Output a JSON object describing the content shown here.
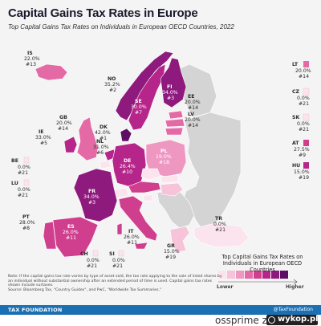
{
  "header": {
    "title": "Capital Gains Tax Rates in Europe",
    "subtitle": "Top Capital Gains Tax Rates on Individuals in European OECD Countries, 2022"
  },
  "colors": {
    "no_data": "#d4d4d4",
    "zero": "#fce4ee",
    "scale": [
      "#fce4ee",
      "#f6c3d9",
      "#ee98c1",
      "#e46aa6",
      "#cf3f8e",
      "#b5258a",
      "#8f1a7d",
      "#5e0f64"
    ]
  },
  "countries": [
    {
      "code": "IS",
      "rate": "22.0%",
      "rank": "#13",
      "value": 22.0
    },
    {
      "code": "NO",
      "rate": "35.2%",
      "rank": "#2",
      "value": 35.2
    },
    {
      "code": "SE",
      "rate": "30.0%",
      "rank": "#7",
      "value": 30.0
    },
    {
      "code": "FI",
      "rate": "34.0%",
      "rank": "#3",
      "value": 34.0
    },
    {
      "code": "EE",
      "rate": "20.0%",
      "rank": "#14",
      "value": 20.0
    },
    {
      "code": "LV",
      "rate": "20.0%",
      "rank": "#14",
      "value": 20.0
    },
    {
      "code": "GB",
      "rate": "20.0%",
      "rank": "#14",
      "value": 20.0
    },
    {
      "code": "IE",
      "rate": "33.0%",
      "rank": "#5",
      "value": 33.0
    },
    {
      "code": "DK",
      "rate": "42.0%",
      "rank": "#1",
      "value": 42.0
    },
    {
      "code": "NL",
      "rate": "31.0%",
      "rank": "#6",
      "value": 31.0
    },
    {
      "code": "DE",
      "rate": "26.4%",
      "rank": "#10",
      "value": 26.4
    },
    {
      "code": "PL",
      "rate": "19.0%",
      "rank": "#18",
      "value": 19.0
    },
    {
      "code": "FR",
      "rate": "34.0%",
      "rank": "#3",
      "value": 34.0
    },
    {
      "code": "ES",
      "rate": "26.0%",
      "rank": "#11",
      "value": 26.0
    },
    {
      "code": "PT",
      "rate": "28.0%",
      "rank": "#8",
      "value": 28.0
    },
    {
      "code": "IT",
      "rate": "26.0%",
      "rank": "#11",
      "value": 26.0
    },
    {
      "code": "GR",
      "rate": "15.0%",
      "rank": "#19",
      "value": 15.0
    },
    {
      "code": "TR",
      "rate": "0.0%",
      "rank": "#21",
      "value": 0.0
    },
    {
      "code": "BE",
      "rate": "0.0%",
      "rank": "#21",
      "value": 0.0
    },
    {
      "code": "LU",
      "rate": "0.0%",
      "rank": "#21",
      "value": 0.0
    },
    {
      "code": "CH",
      "rate": "0.0%",
      "rank": "#21",
      "value": 0.0
    },
    {
      "code": "SI",
      "rate": "0.0%",
      "rank": "#21",
      "value": 0.0
    },
    {
      "code": "LT",
      "rate": "20.0%",
      "rank": "#14",
      "value": 20.0
    },
    {
      "code": "CZ",
      "rate": "0.0%",
      "rank": "#21",
      "value": 0.0
    },
    {
      "code": "SK",
      "rate": "0.0%",
      "rank": "#21",
      "value": 0.0
    },
    {
      "code": "AT",
      "rate": "27.5%",
      "rank": "#9",
      "value": 27.5
    },
    {
      "code": "HU",
      "rate": "15.0%",
      "rank": "#19",
      "value": 15.0
    }
  ],
  "legend": {
    "title": "Top Capital Gains Tax Rates on Individuals in European OECD Countries",
    "low_label": "Lower",
    "high_label": "Higher"
  },
  "note": "Note: If the capital gains tax rate varies by type of asset sold, the tax rate applying to the sale of listed shares by an individual without substantial ownership after an extended period of time is used. Capital gains tax rates shown include surtaxes.",
  "source": "Source: Bloomberg Tax, \"Country Guides\", and PwC, \"Worldwide Tax Summaries.\"",
  "footer": {
    "org": "TAX FOUNDATION",
    "handle": "@TaxFoundation"
  },
  "watermark": {
    "user": "ossprime",
    "separator": "z",
    "site": "wykop.pl"
  }
}
